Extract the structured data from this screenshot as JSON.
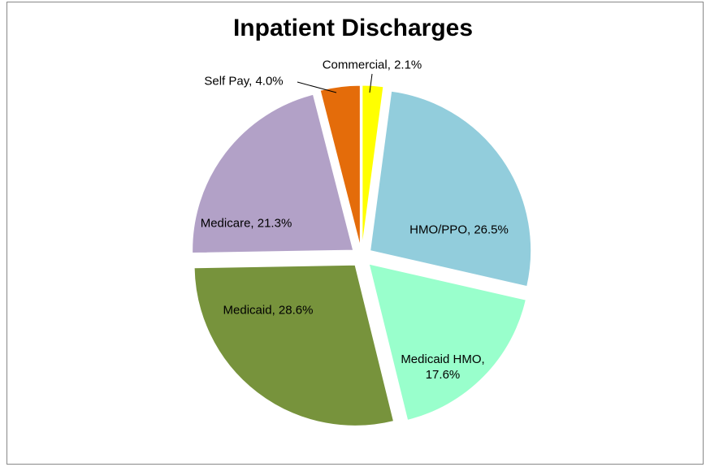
{
  "chart_data": {
    "type": "pie",
    "title": "Inpatient Discharges",
    "values": [
      2.1,
      26.5,
      17.6,
      28.6,
      21.3,
      4.0
    ],
    "value_labels": [
      "Commercial, 2.1%",
      "HMO/PPO, 26.5%",
      "Medicaid HMO, 17.6%",
      "Medicaid, 28.6%",
      "Medicare, 21.3%",
      "Self Pay, 4.0%"
    ],
    "colors": [
      "#ffff00",
      "#92cddc",
      "#99ffcc",
      "#77933c",
      "#b2a1c7",
      "#e46c0a"
    ]
  }
}
